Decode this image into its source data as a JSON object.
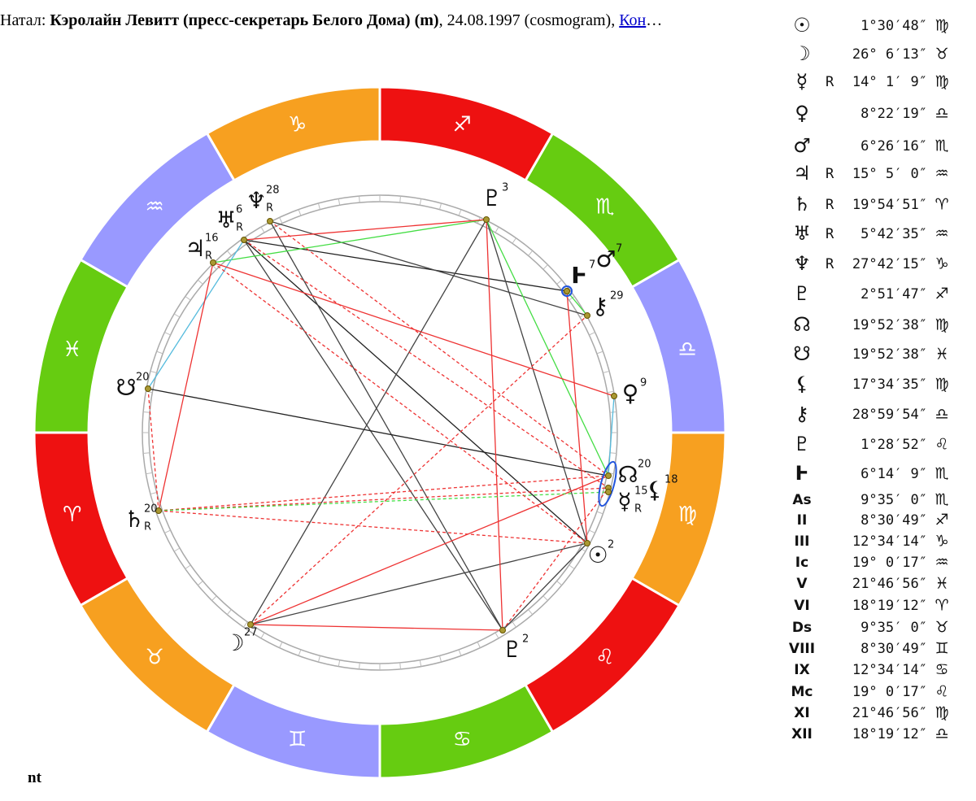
{
  "header": {
    "prefix": "Натал: ",
    "name": "Кэролайн Левитт (пресс-секретарь Белого Дома) (m)",
    "details": ", 24.08.1997 (cosmogram), ",
    "link": "Кон",
    "ellipsis": "…"
  },
  "zodiac": [
    "♈︎",
    "♉︎",
    "♊︎",
    "♋︎",
    "♌︎",
    "♍︎",
    "♎︎",
    "♏︎",
    "♐︎",
    "♑︎",
    "♒︎",
    "♓︎"
  ],
  "wheel": [
    {
      "glyph": "☉",
      "degree": "2"
    },
    {
      "glyph": "☽",
      "degree": "27"
    },
    {
      "glyph": "☿",
      "degree": "15",
      "retro": "R"
    },
    {
      "glyph": "♀",
      "degree": "9"
    },
    {
      "glyph": "♂",
      "degree": "7"
    },
    {
      "glyph": "♃",
      "degree": "16",
      "retro": "R"
    },
    {
      "glyph": "♄",
      "degree": "20",
      "retro": "R"
    },
    {
      "glyph": "♅",
      "degree": "6",
      "retro": "R"
    },
    {
      "glyph": "♆",
      "degree": "28",
      "retro": "R"
    },
    {
      "glyph": "♇",
      "degree": "3"
    },
    {
      "glyph": "☊",
      "degree": "20"
    },
    {
      "glyph": "☋",
      "degree": "20"
    },
    {
      "glyph": "⚸",
      "degree": "18"
    },
    {
      "glyph": "⚷",
      "degree": "29"
    },
    {
      "glyph": "♇",
      "degree": "2"
    },
    {
      "glyph": "Ⱶ",
      "degree": "7"
    }
  ],
  "positions": [
    {
      "glyph": "☉",
      "position": "1°30′48″",
      "sign": "♍︎"
    },
    {
      "glyph": "☽",
      "position": "26° 6′13″",
      "sign": "♉︎"
    },
    {
      "glyph": "☿",
      "retro": "R",
      "position": "14° 1′ 9″",
      "sign": "♍︎"
    },
    {
      "glyph": "♀",
      "position": "8°22′19″",
      "sign": "♎︎"
    },
    {
      "glyph": "♂",
      "position": "6°26′16″",
      "sign": "♏︎"
    },
    {
      "glyph": "♃",
      "retro": "R",
      "position": "15° 5′ 0″",
      "sign": "♒︎"
    },
    {
      "glyph": "♄",
      "retro": "R",
      "position": "19°54′51″",
      "sign": "♈︎"
    },
    {
      "glyph": "♅",
      "retro": "R",
      "position": "5°42′35″",
      "sign": "♒︎"
    },
    {
      "glyph": "♆",
      "retro": "R",
      "position": "27°42′15″",
      "sign": "♑︎"
    },
    {
      "glyph": "♇",
      "position": "2°51′47″",
      "sign": "♐︎"
    },
    {
      "glyph": "☊",
      "position": "19°52′38″",
      "sign": "♍︎"
    },
    {
      "glyph": "☋",
      "position": "19°52′38″",
      "sign": "♓︎"
    },
    {
      "glyph": "⚸",
      "position": "17°34′35″",
      "sign": "♍︎"
    },
    {
      "glyph": "⚷",
      "position": "28°59′54″",
      "sign": "♎︎"
    },
    {
      "glyph": "♇",
      "position": "1°28′52″",
      "sign": "♌︎"
    },
    {
      "glyph": "Ⱶ",
      "position": "6°14′ 9″",
      "sign": "♏︎"
    },
    {
      "glyph": "As",
      "position": "9°35′ 0″",
      "sign": "♏︎"
    },
    {
      "glyph": "II",
      "position": "8°30′49″",
      "sign": "♐︎"
    },
    {
      "glyph": "III",
      "position": "12°34′14″",
      "sign": "♑︎"
    },
    {
      "glyph": "Ic",
      "position": "19° 0′17″",
      "sign": "♒︎"
    },
    {
      "glyph": "V",
      "position": "21°46′56″",
      "sign": "♓︎"
    },
    {
      "glyph": "VI",
      "position": "18°19′12″",
      "sign": "♈︎"
    },
    {
      "glyph": "Ds",
      "position": "9°35′ 0″",
      "sign": "♉︎"
    },
    {
      "glyph": "VIII",
      "position": "8°30′49″",
      "sign": "♊︎"
    },
    {
      "glyph": "IX",
      "position": "12°34′14″",
      "sign": "♋︎"
    },
    {
      "glyph": "Mc",
      "position": "19° 0′17″",
      "sign": "♌︎"
    },
    {
      "glyph": "XI",
      "position": "21°46′56″",
      "sign": "♍︎"
    },
    {
      "glyph": "XII",
      "position": "18°19′12″",
      "sign": "♎︎"
    }
  ],
  "footer": "nt"
}
